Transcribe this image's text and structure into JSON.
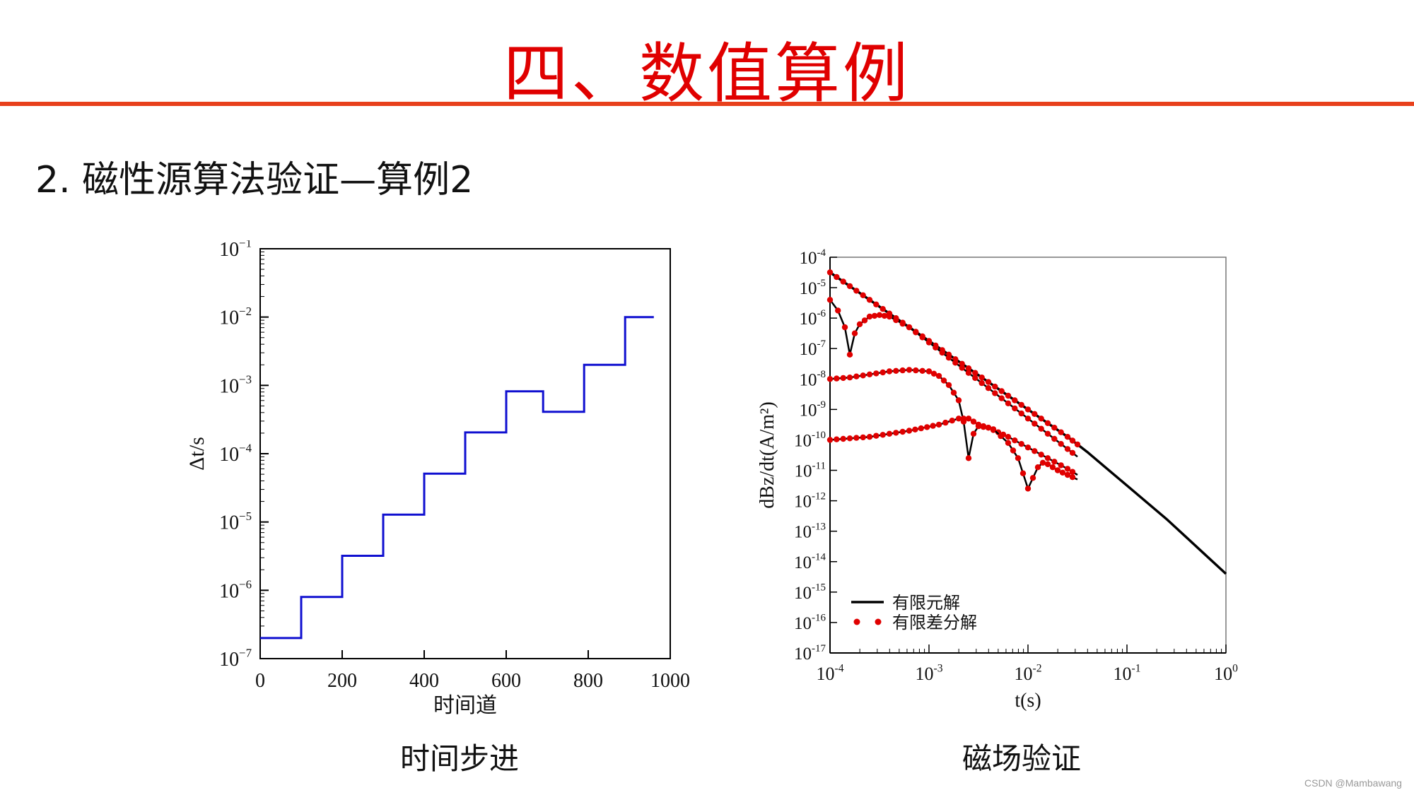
{
  "slide": {
    "title": "四、数值算例",
    "subtitle": "2.  磁性源算法验证—算例2",
    "watermark": "CSDN @Mambawang",
    "captions": {
      "left": "时间步进",
      "right": "磁场验证"
    },
    "colors": {
      "title": "#e00000",
      "rule": "#e8401c",
      "step_line": "#1010d0",
      "fem_line": "#000000",
      "fdm_dots": "#e00000"
    }
  },
  "chart_data": [
    {
      "type": "line",
      "step": true,
      "xlabel": "时间道",
      "ylabel": "Δt/s",
      "xlim": [
        0,
        1000
      ],
      "ylim_exp": [
        -7,
        -1
      ],
      "yscale": "log",
      "xticks": [
        "0",
        "200",
        "400",
        "600",
        "800",
        "1000"
      ],
      "yticks": [
        {
          "exp": -7,
          "label": "10"
        },
        {
          "exp": -6,
          "label": "10"
        },
        {
          "exp": -5,
          "label": "10"
        },
        {
          "exp": -4,
          "label": "10"
        },
        {
          "exp": -3,
          "label": "10"
        },
        {
          "exp": -2,
          "label": "10"
        },
        {
          "exp": -1,
          "label": "10"
        }
      ],
      "ytick_sup": [
        "−7",
        "−6",
        "−5",
        "−4",
        "−3",
        "−2",
        "−1"
      ],
      "series": [
        {
          "x": [
            0,
            100,
            100,
            200,
            200,
            300,
            300,
            400,
            400,
            500,
            500,
            600,
            600,
            690,
            690,
            790,
            790,
            890,
            890,
            960
          ],
          "y": [
            2e-07,
            2e-07,
            8e-07,
            8e-07,
            3.2e-06,
            3.2e-06,
            1.28e-05,
            1.28e-05,
            5.1e-05,
            5.1e-05,
            0.000205,
            0.000205,
            0.00082,
            0.00082,
            0.00041,
            0.00041,
            0.002,
            0.002,
            0.01,
            0.01
          ]
        }
      ]
    },
    {
      "type": "line",
      "xlabel": "t(s)",
      "ylabel": "dBz/dt(A/m²)",
      "xscale": "log",
      "yscale": "log",
      "xlim_exp": [
        -4,
        0
      ],
      "ylim_exp": [
        -17,
        -4
      ],
      "xticks": [
        {
          "exp": -4,
          "sup": "-4"
        },
        {
          "exp": -3,
          "sup": "-3"
        },
        {
          "exp": -2,
          "sup": "-2"
        },
        {
          "exp": -1,
          "sup": "-1"
        },
        {
          "exp": 0,
          "sup": "0"
        }
      ],
      "yticks": [
        {
          "exp": -4,
          "sup": "-4"
        },
        {
          "exp": -5,
          "sup": "-5"
        },
        {
          "exp": -6,
          "sup": "-6"
        },
        {
          "exp": -7,
          "sup": "-7"
        },
        {
          "exp": -8,
          "sup": "-8"
        },
        {
          "exp": -9,
          "sup": "-9"
        },
        {
          "exp": -10,
          "sup": "-10"
        },
        {
          "exp": -11,
          "sup": "-11"
        },
        {
          "exp": -12,
          "sup": "-12"
        },
        {
          "exp": -13,
          "sup": "-13"
        },
        {
          "exp": -14,
          "sup": "-14"
        },
        {
          "exp": -15,
          "sup": "-15"
        },
        {
          "exp": -16,
          "sup": "-16"
        },
        {
          "exp": -17,
          "sup": "-17"
        }
      ],
      "tick_base": "10",
      "legend": {
        "placement": "bottom-left",
        "entries": [
          {
            "name": "有限元解",
            "style": "line"
          },
          {
            "name": "有限差分解",
            "style": "dots"
          }
        ]
      },
      "series": [
        {
          "id": "A",
          "x_log": [
            -4,
            -3.8,
            -3.6,
            -3.4,
            -3.2,
            -3.0,
            -2.8,
            -2.6,
            -2.4,
            -2.2,
            -2.0,
            -1.8,
            -1.6,
            -1.5,
            -1.4,
            -1.2,
            -1.0,
            -0.8,
            -0.6,
            -0.4,
            -0.2,
            0
          ],
          "y_log": [
            -4.5,
            -4.95,
            -5.4,
            -5.85,
            -6.3,
            -6.75,
            -7.2,
            -7.65,
            -8.1,
            -8.55,
            -9.0,
            -9.45,
            -9.9,
            -10.15,
            -10.4,
            -10.95,
            -11.5,
            -12.05,
            -12.6,
            -13.2,
            -13.8,
            -14.4
          ]
        },
        {
          "id": "B",
          "x_log": [
            -4,
            -3.92,
            -3.85,
            -3.8,
            -3.75,
            -3.7,
            -3.6,
            -3.5,
            -3.4,
            -3.2,
            -3.0,
            -2.8,
            -2.6,
            -2.4,
            -2.2,
            -2.0,
            -1.8,
            -1.6,
            -1.5
          ],
          "y_log": [
            -5.4,
            -5.75,
            -6.3,
            -7.2,
            -6.5,
            -6.2,
            -5.95,
            -5.9,
            -5.95,
            -6.3,
            -6.8,
            -7.3,
            -7.8,
            -8.3,
            -8.8,
            -9.3,
            -9.8,
            -10.3,
            -10.55
          ]
        },
        {
          "id": "C",
          "x_log": [
            -4,
            -3.8,
            -3.6,
            -3.4,
            -3.2,
            -3.0,
            -2.9,
            -2.8,
            -2.7,
            -2.65,
            -2.6,
            -2.55,
            -2.5,
            -2.4,
            -2.3,
            -2.2,
            -2.0,
            -1.8,
            -1.6,
            -1.5
          ],
          "y_log": [
            -8.0,
            -7.95,
            -7.85,
            -7.75,
            -7.7,
            -7.75,
            -7.9,
            -8.2,
            -8.7,
            -9.4,
            -10.6,
            -9.8,
            -9.55,
            -9.6,
            -9.75,
            -9.9,
            -10.25,
            -10.6,
            -10.95,
            -11.15
          ]
        },
        {
          "id": "D",
          "x_log": [
            -4,
            -3.6,
            -3.2,
            -2.9,
            -2.7,
            -2.6,
            -2.5,
            -2.45,
            -2.35,
            -2.2,
            -2.1,
            -2.0,
            -1.9,
            -1.85,
            -1.8,
            -1.75,
            -1.7,
            -1.6,
            -1.5
          ],
          "y_log": [
            -10.0,
            -9.9,
            -9.7,
            -9.5,
            -9.3,
            -9.3,
            -9.5,
            -9.55,
            -9.65,
            -10.1,
            -10.6,
            -11.6,
            -10.9,
            -10.75,
            -10.8,
            -10.9,
            -11.0,
            -11.15,
            -11.3
          ]
        }
      ]
    }
  ]
}
